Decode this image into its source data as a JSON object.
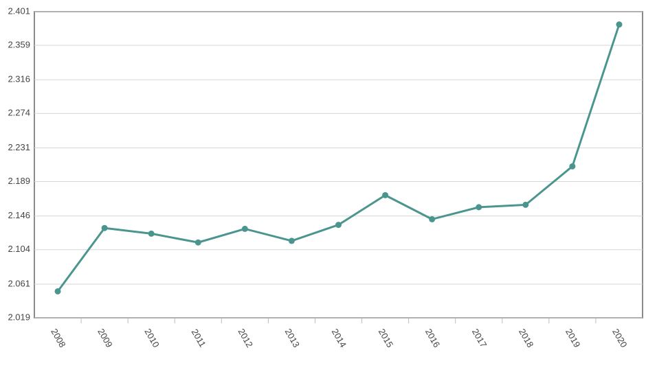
{
  "chart_data": {
    "type": "line",
    "categories": [
      "2008",
      "2009",
      "2010",
      "2011",
      "2012",
      "2013",
      "2014",
      "2015",
      "2016",
      "2017",
      "2018",
      "2019",
      "2020"
    ],
    "series": [
      {
        "color": "#4b958f",
        "values": [
          2.052,
          2.131,
          2.124,
          2.113,
          2.13,
          2.115,
          2.135,
          2.172,
          2.142,
          2.157,
          2.16,
          2.208,
          2.385
        ]
      }
    ],
    "ylim": [
      2.019,
      2.401
    ],
    "yticks": [
      2.019,
      2.061,
      2.104,
      2.146,
      2.189,
      2.231,
      2.274,
      2.316,
      2.359,
      2.401
    ],
    "grid": true
  }
}
